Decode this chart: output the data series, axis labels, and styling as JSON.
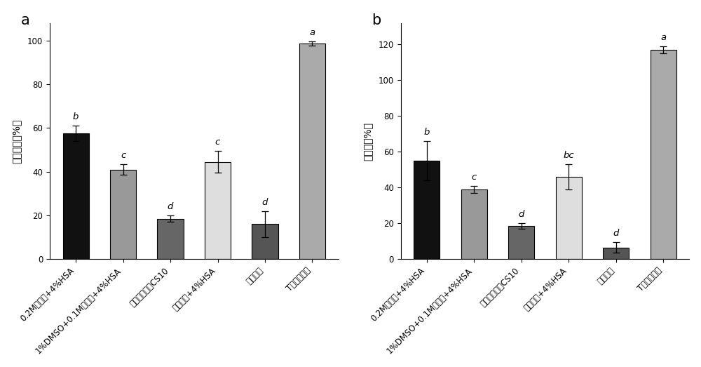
{
  "panel_a": {
    "title": "a",
    "ylabel": "相对活率（%）",
    "ylim": [
      0,
      108
    ],
    "yticks": [
      0,
      20,
      40,
      60,
      80,
      100
    ],
    "categories": [
      "0.2M海藻糖+4%HSA",
      "1%DMSO+0.1M海藻糖+4%HSA",
      "商品化保护剂CS10",
      "生理盐水+4%HSA",
      "生理盐水",
      "T细胞培兿基"
    ],
    "values": [
      57.5,
      41.0,
      18.5,
      44.5,
      16.0,
      98.5
    ],
    "errors": [
      3.5,
      2.5,
      1.5,
      5.0,
      6.0,
      1.0
    ],
    "letters": [
      "b",
      "c",
      "d",
      "c",
      "d",
      "a"
    ],
    "colors": [
      "#111111",
      "#999999",
      "#666666",
      "#dedede",
      "#555555",
      "#aaaaaa"
    ]
  },
  "panel_b": {
    "title": "b",
    "ylabel": "回收率（%）",
    "ylim": [
      0,
      132
    ],
    "yticks": [
      0,
      20,
      40,
      60,
      80,
      100,
      120
    ],
    "categories": [
      "0.2M海藻糖+4%HSA",
      "1%DMSO+0.1M海藻糖+4%HSA",
      "商品化保护剂CS10",
      "生理盐水+4%HSA",
      "生理盐水",
      "T细胞培兿基"
    ],
    "values": [
      55.0,
      39.0,
      18.5,
      46.0,
      6.5,
      117.0
    ],
    "errors": [
      11.0,
      2.0,
      1.5,
      7.0,
      3.0,
      2.0
    ],
    "letters": [
      "b",
      "c",
      "d",
      "bc",
      "d",
      "a"
    ],
    "colors": [
      "#111111",
      "#999999",
      "#666666",
      "#dedede",
      "#555555",
      "#aaaaaa"
    ]
  },
  "fig_width": 10.0,
  "fig_height": 5.23,
  "bg_color": "#ffffff",
  "label_fontsize": 10,
  "tick_fontsize": 8.5,
  "letter_fontsize": 9.5,
  "panel_letter_fontsize": 15,
  "bar_width": 0.55
}
